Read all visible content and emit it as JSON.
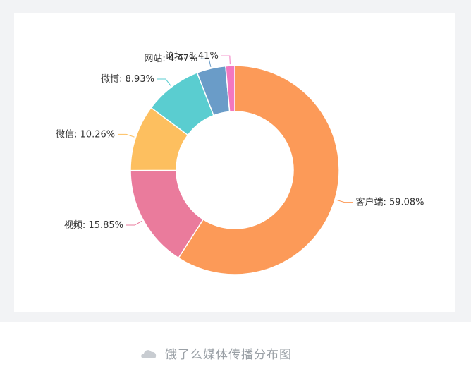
{
  "caption": {
    "text": "饿了么媒体传播分布图",
    "icon": "cloud-icon"
  },
  "chart_data": {
    "type": "pie",
    "variant": "donut",
    "title": "",
    "slices": [
      {
        "label": "客户端: 59.08%",
        "name": "客户端",
        "value": 59.08,
        "color": "#fc9a58"
      },
      {
        "label": "视频: 15.85%",
        "name": "视频",
        "value": 15.85,
        "color": "#ea7b9c"
      },
      {
        "label": "微信: 10.26%",
        "name": "微信",
        "value": 10.26,
        "color": "#fdbf5f"
      },
      {
        "label": "微博: 8.93%",
        "name": "微博",
        "value": 8.93,
        "color": "#5acdd0"
      },
      {
        "label": "网站: 4.47%",
        "name": "网站",
        "value": 4.47,
        "color": "#6a9cc8"
      },
      {
        "label": "论坛: 1.41%",
        "name": "论坛",
        "value": 1.41,
        "color": "#f277c0"
      }
    ]
  }
}
